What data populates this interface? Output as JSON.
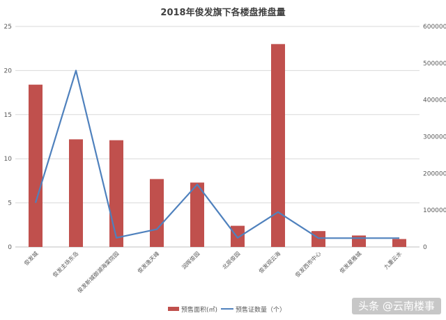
{
  "chart_data": {
    "type": "bar",
    "title": "2018年俊发旗下各楼盘推盘量",
    "categories": [
      "俊发城",
      "俊发主场东岛",
      "俊发新城御湖海棠院园",
      "俊发逸天峰",
      "润晖俊园",
      "北辰俊园",
      "俊发观云海",
      "俊发西市中心",
      "俊发星雅城",
      "九重云水"
    ],
    "series": [
      {
        "name": "预售面积(㎡)",
        "type": "bar",
        "axis": "left",
        "color": "#c0504d",
        "values": [
          18.4,
          12.2,
          12.1,
          7.7,
          7.3,
          2.4,
          23.0,
          1.8,
          1.3,
          0.9
        ]
      },
      {
        "name": "预售证数量（个）",
        "type": "line",
        "axis": "right",
        "color": "#4f81bd",
        "values": [
          120000,
          480000,
          25000,
          48000,
          170000,
          25000,
          95000,
          24000,
          24000,
          24000
        ]
      }
    ],
    "y_left": {
      "range": [
        0,
        25
      ],
      "ticks": [
        0,
        5,
        10,
        15,
        20,
        25
      ]
    },
    "y_right": {
      "range": [
        0,
        600000
      ],
      "ticks": [
        0,
        100000,
        200000,
        300000,
        400000,
        500000,
        600000
      ]
    },
    "grid": true,
    "legend_position": "bottom"
  },
  "watermark": {
    "text": "头条 @云南楼事"
  }
}
